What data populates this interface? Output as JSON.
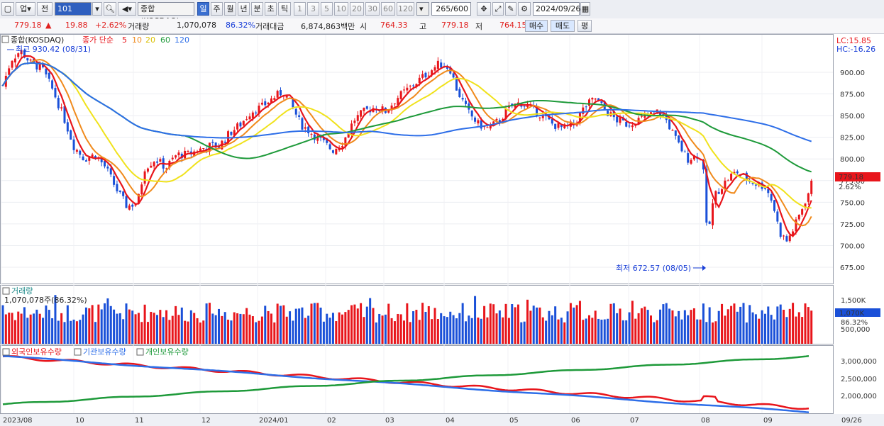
{
  "toolbar": {
    "mode": "업",
    "prev": "전",
    "code": "101",
    "market_name": "종합(KOSDAQ)",
    "periods": [
      "일",
      "주",
      "월",
      "년",
      "분",
      "초",
      "틱"
    ],
    "active_period": "일",
    "intervals": [
      "1",
      "3",
      "5",
      "10",
      "20",
      "30",
      "60",
      "120"
    ],
    "count": "265/600",
    "date": "2024/09/26"
  },
  "quote": {
    "price": "779.18",
    "change": "19.88",
    "change_pct": "+2.62%",
    "volume_label": "거래량",
    "volume": "1,070,078",
    "volume_ratio": "86.32%",
    "amount_label": "거래대금",
    "amount": "6,874,863백만",
    "open_label": "시",
    "open": "764.33",
    "high_label": "고",
    "high": "779.18",
    "low_label": "저",
    "low": "764.15",
    "buy_label": "매수",
    "sell_label": "매도",
    "eval_label": "평"
  },
  "legend": {
    "market": "종합(KOSDAQ)",
    "ma_prefix": "종가 단순",
    "ma_periods": [
      {
        "label": "5",
        "color": "#e8151b"
      },
      {
        "label": "10",
        "color": "#f08a1c"
      },
      {
        "label": "20",
        "color": "#f0e21c"
      },
      {
        "label": "60",
        "color": "#1e9a3a"
      },
      {
        "label": "120",
        "color": "#2d6ee8"
      }
    ],
    "lc": "LC:15.85",
    "hc": "HC:-16.26"
  },
  "annotations": {
    "high": "최고 930.42 (08/31)",
    "low": "최저 672.57 (08/05)"
  },
  "price_axis": {
    "ticks": [
      "900.00",
      "875.00",
      "850.00",
      "825.00",
      "800.00",
      "775.00",
      "750.00",
      "725.00",
      "700.00",
      "675.00"
    ],
    "current": "779.18",
    "current_pct": "2.62%"
  },
  "volume_panel": {
    "title": "거래량",
    "value": "1,070,078주(86.32%)",
    "ticks": [
      "1,500K",
      "500,000"
    ],
    "current": "1,070K",
    "current_pct": "86.32%"
  },
  "holdings_panel": {
    "series": [
      {
        "name": "외국인보유수량",
        "color": "#e8151b"
      },
      {
        "name": "기관보유수량",
        "color": "#2d6ee8"
      },
      {
        "name": "개인보유수량",
        "color": "#1e9a3a"
      }
    ],
    "ticks": [
      "3,000,000",
      "2,500,000",
      "2,000,000"
    ]
  },
  "x_axis": {
    "labels": [
      "2023/08",
      "10",
      "11",
      "12",
      "2024/01",
      "02",
      "03",
      "04",
      "05",
      "06",
      "07",
      "08",
      "09"
    ],
    "right_label": "09/26"
  },
  "colors": {
    "up": "#e8151b",
    "down": "#1a50d8"
  }
}
